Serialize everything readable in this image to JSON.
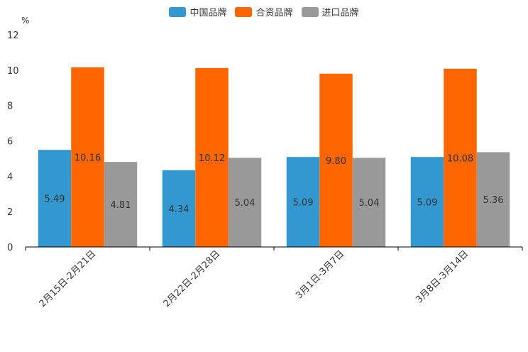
{
  "chart_data": {
    "type": "bar",
    "title": "",
    "ylabel": "%",
    "xlabel": "",
    "ylim": [
      0,
      12
    ],
    "yticks": [
      0,
      2,
      4,
      6,
      8,
      10,
      12
    ],
    "categories": [
      "2月15日-2月21日",
      "2月22日-2月28日",
      "3月1日-3月7日",
      "3月8日-3月14日"
    ],
    "series": [
      {
        "name": "中国品牌",
        "color": "#3398CF",
        "values": [
          5.49,
          4.34,
          5.09,
          5.09
        ]
      },
      {
        "name": "合资品牌",
        "color": "#FF6600",
        "values": [
          10.16,
          10.12,
          9.8,
          10.08
        ]
      },
      {
        "name": "进口品牌",
        "color": "#999999",
        "values": [
          4.81,
          5.04,
          5.04,
          5.36
        ]
      }
    ],
    "legend_position": "top"
  }
}
